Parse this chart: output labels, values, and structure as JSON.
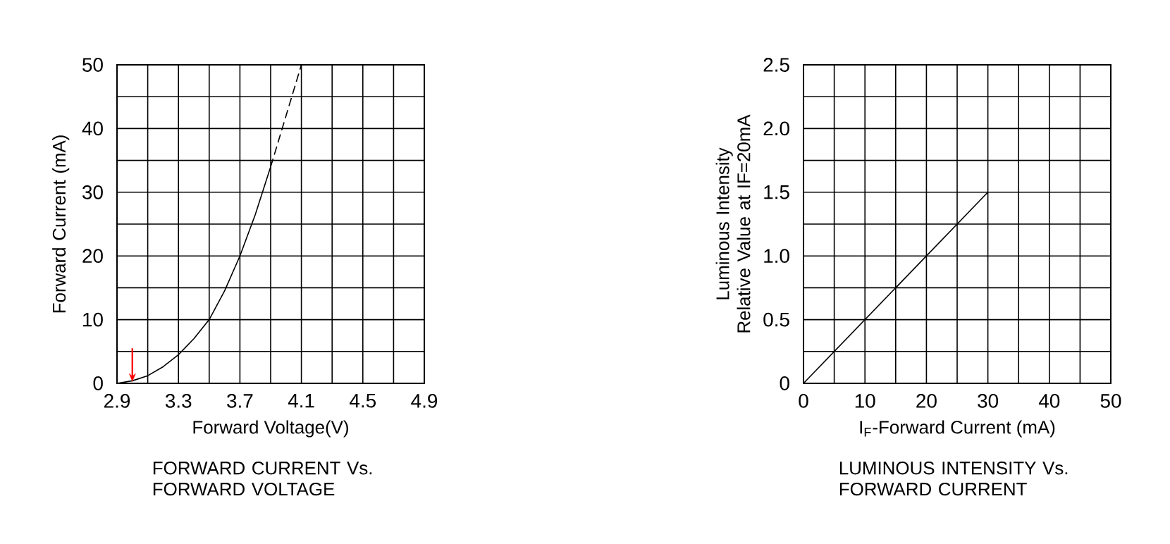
{
  "chart_data": [
    {
      "type": "line",
      "title": "FORWARD CURRENT Vs. FORWARD VOLTAGE",
      "xlabel": "Forward Voltage(V)",
      "ylabel": "Forward Current (mA)",
      "series": [
        {
          "color": "#000000",
          "line_style": "solid",
          "x": [
            2.9,
            3.0,
            3.1,
            3.2,
            3.3,
            3.4,
            3.5,
            3.6,
            3.7,
            3.8,
            3.9
          ],
          "values": [
            0,
            0.4,
            1.2,
            2.6,
            4.5,
            7,
            10,
            14.5,
            20,
            26.5,
            34
          ]
        },
        {
          "color": "#000000",
          "line_style": "dashed",
          "x": [
            3.9,
            4.0,
            4.1
          ],
          "values": [
            34,
            42,
            50
          ]
        }
      ],
      "xlim": [
        2.9,
        4.9
      ],
      "ylim": [
        0,
        50
      ],
      "xticks": [
        2.9,
        {
          "value": 3.1,
          "label": null
        },
        3.3,
        {
          "value": 3.5,
          "label": null
        },
        3.7,
        {
          "value": 3.9,
          "label": null
        },
        4.1,
        {
          "value": 4.3,
          "label": null
        },
        4.5,
        {
          "value": 4.7,
          "label": null
        },
        4.9
      ],
      "yticks": [
        0,
        {
          "value": 5,
          "label": null
        },
        10,
        {
          "value": 15,
          "label": null
        },
        20,
        {
          "value": 25,
          "label": null
        },
        30,
        {
          "value": 35,
          "label": null
        },
        40,
        {
          "value": 45,
          "label": null
        },
        50
      ],
      "grid": true
    },
    {
      "type": "line",
      "title": "LUMINOUS INTENSITY Vs. FORWARD CURRENT",
      "xlabel": "I$_{F}$-Forward Current (mA)",
      "ylabel": "Luminous Intensity Relative Value at IF=20mA",
      "x": [
        0,
        30
      ],
      "values": [
        0,
        1.5
      ],
      "color": "#000000",
      "line_style": "solid",
      "xlim": [
        0,
        50
      ],
      "ylim": [
        0,
        2.5
      ],
      "xticks": [
        0,
        {
          "value": 5,
          "label": null
        },
        10,
        {
          "value": 15,
          "label": null
        },
        20,
        {
          "value": 25,
          "label": null
        },
        30,
        {
          "value": 35,
          "label": null
        },
        40,
        {
          "value": 45,
          "label": null
        },
        50
      ],
      "yticks": [
        0,
        {
          "value": 0.25,
          "label": null
        },
        0.5,
        {
          "value": 0.75,
          "label": null
        },
        {
          "value": 1.0,
          "label": "1.0"
        },
        {
          "value": 1.25,
          "label": null
        },
        1.5,
        {
          "value": 1.75,
          "label": null
        },
        {
          "value": 2.0,
          "label": "2.0"
        },
        {
          "value": 2.25,
          "label": null
        },
        2.5
      ],
      "grid": true
    }
  ]
}
